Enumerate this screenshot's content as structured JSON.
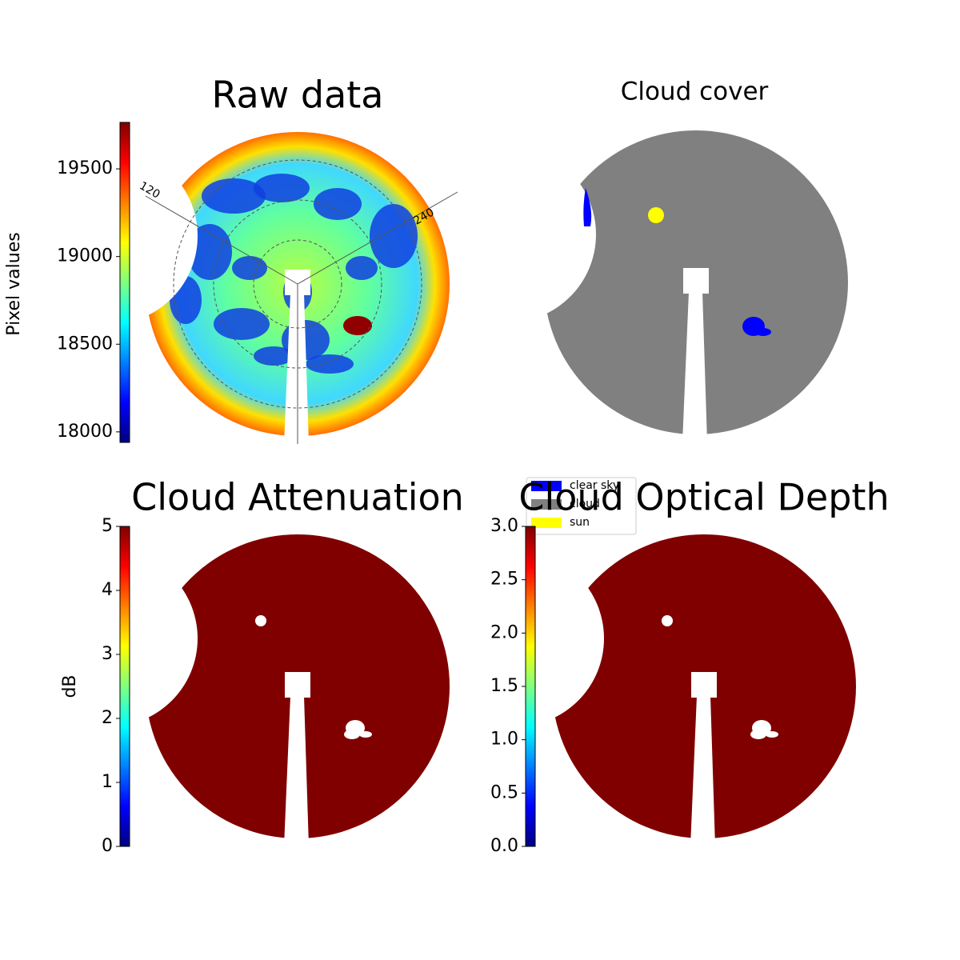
{
  "chart_data": [
    {
      "type": "image",
      "title": "Raw data",
      "colorbar": {
        "label": "Pixel values",
        "lim": [
          17940,
          19765
        ],
        "ticks": [
          18000,
          18500,
          19000,
          19500
        ],
        "colormap": "jet"
      },
      "annotations": [
        "120",
        "240"
      ]
    },
    {
      "type": "categorical-image",
      "title": "Cloud cover",
      "legend": [
        {
          "name": "clear sky",
          "color": "#0000ff"
        },
        {
          "name": "cloud",
          "color": "#808080"
        },
        {
          "name": "sun",
          "color": "#ffff00"
        }
      ]
    },
    {
      "type": "image",
      "title": "Cloud Attenuation",
      "fill": "#800000",
      "colorbar": {
        "label": "dB",
        "lim": [
          0,
          5
        ],
        "ticks": [
          0,
          1,
          2,
          3,
          4,
          5
        ],
        "colormap": "jet"
      }
    },
    {
      "type": "image",
      "title": "Cloud Optical Depth",
      "fill": "#800000",
      "colorbar": {
        "lim": [
          0,
          3
        ],
        "colormap": "jet",
        "ticks": [
          {
            "value": 0,
            "label": "0.0"
          },
          {
            "value": 0.5,
            "label": "0.5"
          },
          {
            "value": 1,
            "label": "1.0"
          },
          {
            "value": 1.5,
            "label": "1.5"
          },
          {
            "value": 2,
            "label": "2.0"
          },
          {
            "value": 2.5,
            "label": "2.5"
          },
          {
            "value": 3,
            "label": "3.0"
          }
        ]
      }
    }
  ]
}
